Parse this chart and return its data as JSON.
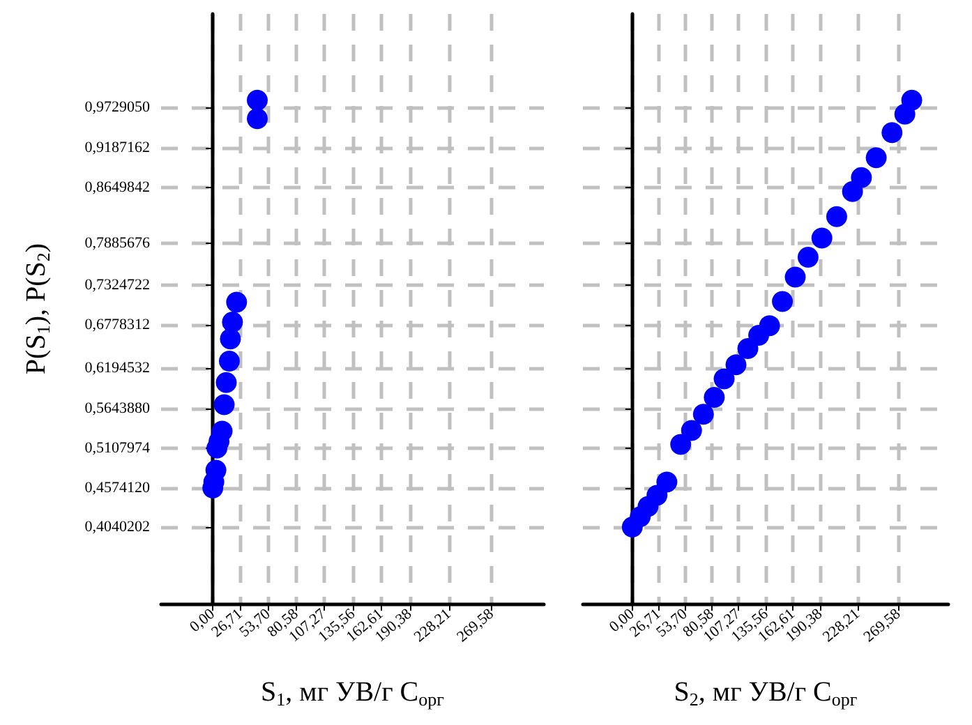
{
  "chart_data": [
    {
      "type": "scatter",
      "ylabel": "P(S$_{1}$), P(S$_{2}$)",
      "xlabel": "S$_{1}$, мг УВ/г С$_{орг}$",
      "xlim": [
        -50,
        320
      ],
      "ylim": [
        0.3,
        1.1
      ],
      "xticks": [
        {
          "value": 0,
          "label": "0,00"
        },
        {
          "value": 26.71,
          "label": "26,71"
        },
        {
          "value": 53.7,
          "label": "53,70"
        },
        {
          "value": 80.58,
          "label": "80,58"
        },
        {
          "value": 107.27,
          "label": "107,27"
        },
        {
          "value": 135.56,
          "label": "135,56"
        },
        {
          "value": 162.61,
          "label": "162,61"
        },
        {
          "value": 190.38,
          "label": "190,38"
        },
        {
          "value": 228.21,
          "label": "228,21"
        },
        {
          "value": 269.58,
          "label": "269,58"
        }
      ],
      "yticks": [
        {
          "value": 0.4040202,
          "label": "0,4040202"
        },
        {
          "value": 0.457412,
          "label": "0,4574120"
        },
        {
          "value": 0.5107974,
          "label": "0,5107974"
        },
        {
          "value": 0.564388,
          "label": "0,5643880"
        },
        {
          "value": 0.6194532,
          "label": "0,6194532"
        },
        {
          "value": 0.6778312,
          "label": "0,6778312"
        },
        {
          "value": 0.7324722,
          "label": "0,7324722"
        },
        {
          "value": 0.7885676,
          "label": "0,7885676"
        },
        {
          "value": 0.8649842,
          "label": "0,8649842"
        },
        {
          "value": 0.9187162,
          "label": "0,9187162"
        },
        {
          "value": 0.972905,
          "label": "0,9729050"
        }
      ],
      "grid": true,
      "marker": "circle",
      "series": [
        {
          "color": "#0000ff",
          "x": [
            0,
            1,
            3,
            4,
            6,
            9,
            11,
            13,
            16,
            17,
            19,
            23,
            43,
            43
          ],
          "values": [
            0.457,
            0.465,
            0.481,
            0.511,
            0.52,
            0.534,
            0.57,
            0.6,
            0.629,
            0.659,
            0.682,
            0.709,
            0.958,
            0.983
          ]
        }
      ]
    },
    {
      "type": "scatter",
      "xlabel": "S$_{2}$, мг УВ/г С$_{орг}$",
      "xlim": [
        -50,
        320
      ],
      "ylim": [
        0.3,
        1.1
      ],
      "tick_labels": "x",
      "xticks": [
        {
          "value": 0,
          "label": "0,00"
        },
        {
          "value": 26.71,
          "label": "26,71"
        },
        {
          "value": 53.7,
          "label": "53,70"
        },
        {
          "value": 80.58,
          "label": "80,58"
        },
        {
          "value": 107.27,
          "label": "107,27"
        },
        {
          "value": 135.56,
          "label": "135,56"
        },
        {
          "value": 162.61,
          "label": "162,61"
        },
        {
          "value": 190.38,
          "label": "190,38"
        },
        {
          "value": 228.21,
          "label": "228,21"
        },
        {
          "value": 269.58,
          "label": "269,58"
        }
      ],
      "yticks": [
        0.4040202,
        0.457412,
        0.5107974,
        0.564388,
        0.6194532,
        0.6778312,
        0.7324722,
        0.7885676,
        0.8649842,
        0.9187162,
        0.972905
      ],
      "grid": true,
      "marker": "circle",
      "series": [
        {
          "color": "#0000ff",
          "x": [
            0,
            8,
            16,
            25,
            35,
            49,
            60,
            72,
            83,
            93,
            105,
            117,
            128,
            139,
            152,
            165,
            178,
            192,
            207,
            223,
            232,
            247,
            263,
            276,
            283
          ],
          "values": [
            0.404,
            0.418,
            0.432,
            0.447,
            0.465,
            0.516,
            0.535,
            0.557,
            0.58,
            0.605,
            0.624,
            0.646,
            0.664,
            0.677,
            0.71,
            0.743,
            0.77,
            0.796,
            0.825,
            0.859,
            0.878,
            0.905,
            0.939,
            0.964,
            0.983
          ]
        }
      ]
    }
  ]
}
